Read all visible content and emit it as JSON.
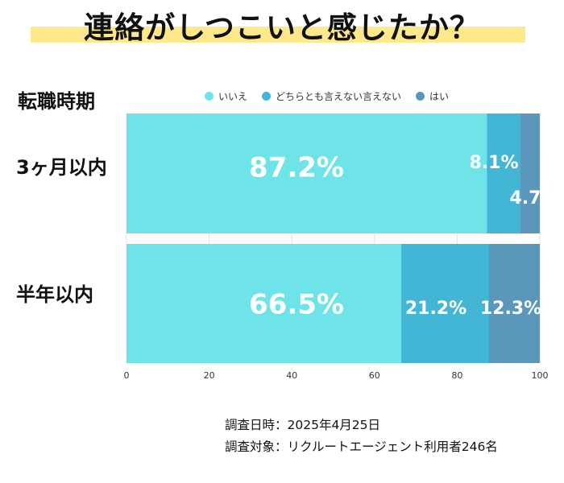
{
  "title": "連絡がしつこいと感じたか？",
  "chart_data": {
    "type": "bar",
    "orientation": "horizontal",
    "stacked": true,
    "legend_title": "転職時期",
    "legend_position": "top",
    "categories": [
      "3ヶ月以内",
      "半年以内"
    ],
    "series": [
      {
        "name": "いいえ",
        "color": "#6ee4e8",
        "values": [
          87.2,
          66.5
        ],
        "labels": [
          "87.2%",
          "66.5%"
        ]
      },
      {
        "name": "どちらとも言えない言えない",
        "color": "#43b6d6",
        "values": [
          8.1,
          21.2
        ],
        "labels": [
          "8.1%",
          "21.2%"
        ]
      },
      {
        "name": "はい",
        "color": "#5a97bb",
        "values": [
          4.7,
          12.3
        ],
        "labels": [
          "4.7",
          "12.3%"
        ]
      }
    ],
    "xlim": [
      0,
      100
    ],
    "xticks": [
      0,
      20,
      40,
      60,
      80,
      100
    ],
    "grid": true
  },
  "notes": [
    "調査日時：2025年4月25日",
    "調査対象：リクルートエージェント利用者246名"
  ]
}
